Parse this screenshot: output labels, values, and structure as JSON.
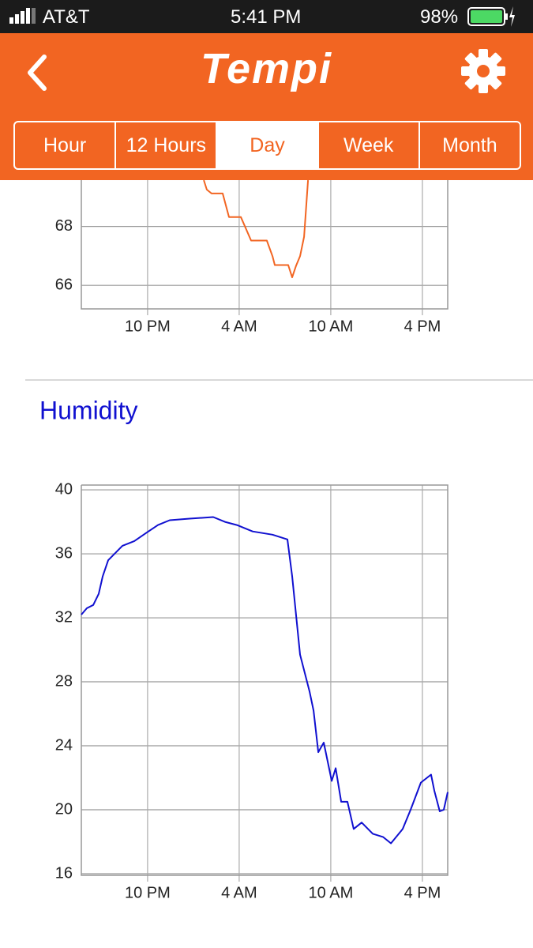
{
  "status_bar": {
    "carrier": "AT&T",
    "time": "5:41 PM",
    "battery": "98%"
  },
  "header": {
    "title": "Tempi"
  },
  "tabs": [
    "Hour",
    "12 Hours",
    "Day",
    "Week",
    "Month"
  ],
  "selected_tab": 2,
  "chart_data": [
    {
      "type": "line",
      "x": [
        25.68,
        25.88,
        26.19,
        26.92,
        27.33,
        28.11,
        28.78,
        29.81,
        30.18,
        30.33,
        31.21,
        31.47,
        31.73,
        31.99,
        32.25,
        32.51
      ],
      "series": [
        {
          "color": "#f26522",
          "values": [
            69.57,
            69.25,
            69.12,
            69.12,
            68.32,
            68.32,
            67.52,
            67.52,
            66.99,
            66.69,
            66.69,
            66.27,
            66.67,
            66.99,
            67.65,
            69.57
          ]
        }
      ],
      "xlim": [
        17.66,
        41.66
      ],
      "xticks": [
        {
          "value": 22,
          "label": "10 PM"
        },
        {
          "value": 28,
          "label": "4 AM"
        },
        {
          "value": 34,
          "label": "10 AM"
        },
        {
          "value": 40,
          "label": "4 PM"
        }
      ],
      "ylim": [
        65.2,
        69.6
      ],
      "yticks": [
        66,
        68
      ],
      "grid": true
    },
    {
      "type": "line",
      "title": "Humidity",
      "x": [
        17.66,
        18.02,
        18.44,
        18.8,
        19.06,
        19.42,
        19.83,
        20.35,
        21.13,
        21.9,
        22.68,
        23.45,
        24.75,
        26.3,
        27.07,
        27.85,
        28.88,
        30.18,
        31.16,
        31.47,
        31.99,
        32.61,
        32.87,
        33.18,
        33.54,
        34.06,
        34.32,
        34.68,
        35.09,
        35.5,
        36.02,
        36.75,
        37.42,
        37.94,
        38.71,
        39.23,
        39.9,
        40.57,
        40.78,
        41.14,
        41.4,
        41.66
      ],
      "series": [
        {
          "color": "#1010d0",
          "values": [
            32.2,
            32.6,
            32.8,
            33.5,
            34.6,
            35.6,
            36.0,
            36.5,
            36.8,
            37.3,
            37.8,
            38.1,
            38.2,
            38.3,
            38.0,
            37.8,
            37.4,
            37.2,
            36.9,
            34.6,
            29.7,
            27.4,
            26.2,
            23.6,
            24.2,
            21.8,
            22.6,
            20.5,
            20.5,
            18.8,
            19.2,
            18.5,
            18.3,
            17.9,
            18.8,
            20.0,
            21.7,
            22.2,
            21.2,
            19.9,
            20.0,
            21.1
          ]
        }
      ],
      "xlim": [
        17.66,
        41.66
      ],
      "xticks": [
        {
          "value": 22,
          "label": "10 PM"
        },
        {
          "value": 28,
          "label": "4 AM"
        },
        {
          "value": 34,
          "label": "10 AM"
        },
        {
          "value": 40,
          "label": "4 PM"
        }
      ],
      "ylim": [
        15.9,
        40.3
      ],
      "yticks": [
        16,
        20,
        24,
        28,
        32,
        36,
        40
      ],
      "grid": true
    }
  ]
}
